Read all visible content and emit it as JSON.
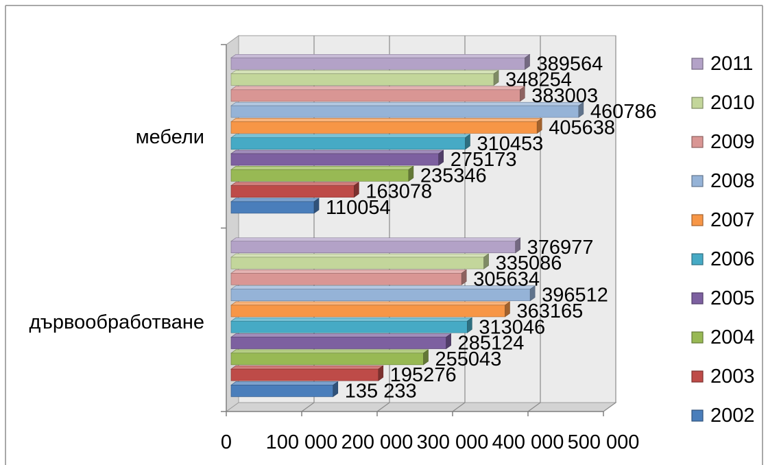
{
  "chart_data": {
    "type": "bar",
    "orientation": "horizontal",
    "three_d": true,
    "categories": [
      "мебели",
      "дървообработване"
    ],
    "series": [
      {
        "name": "2002",
        "color": "#4A7EBB",
        "values": [
          110054,
          135233
        ],
        "labels": [
          "110054",
          "135 233"
        ]
      },
      {
        "name": "2003",
        "color": "#BE4B48",
        "values": [
          163078,
          195276
        ],
        "labels": [
          "163078",
          "195276"
        ]
      },
      {
        "name": "2004",
        "color": "#98B954",
        "values": [
          235346,
          255043
        ],
        "labels": [
          "235346",
          "255043"
        ]
      },
      {
        "name": "2005",
        "color": "#7D60A0",
        "values": [
          275173,
          285124
        ],
        "labels": [
          "275173",
          "285124"
        ]
      },
      {
        "name": "2006",
        "color": "#46AAC5",
        "values": [
          310453,
          313046
        ],
        "labels": [
          "310453",
          "313046"
        ]
      },
      {
        "name": "2007",
        "color": "#F79646",
        "values": [
          405638,
          363165
        ],
        "labels": [
          "405638",
          "363165"
        ]
      },
      {
        "name": "2008",
        "color": "#95B3D7",
        "values": [
          460786,
          396512
        ],
        "labels": [
          "460786",
          "396512"
        ]
      },
      {
        "name": "2009",
        "color": "#D99694",
        "values": [
          383003,
          305634
        ],
        "labels": [
          "383003",
          "305634"
        ]
      },
      {
        "name": "2010",
        "color": "#C3D69B",
        "values": [
          348254,
          335086
        ],
        "labels": [
          "348254",
          "335086"
        ]
      },
      {
        "name": "2011",
        "color": "#B3A2C7",
        "values": [
          389564,
          376977
        ],
        "labels": [
          "389564",
          "376977"
        ]
      }
    ],
    "x_ticks": [
      "0",
      "100 000",
      "200 000",
      "300 000",
      "400 000",
      "500 000"
    ],
    "xlim": [
      0,
      500000
    ],
    "grid": true,
    "legend_position": "right"
  }
}
